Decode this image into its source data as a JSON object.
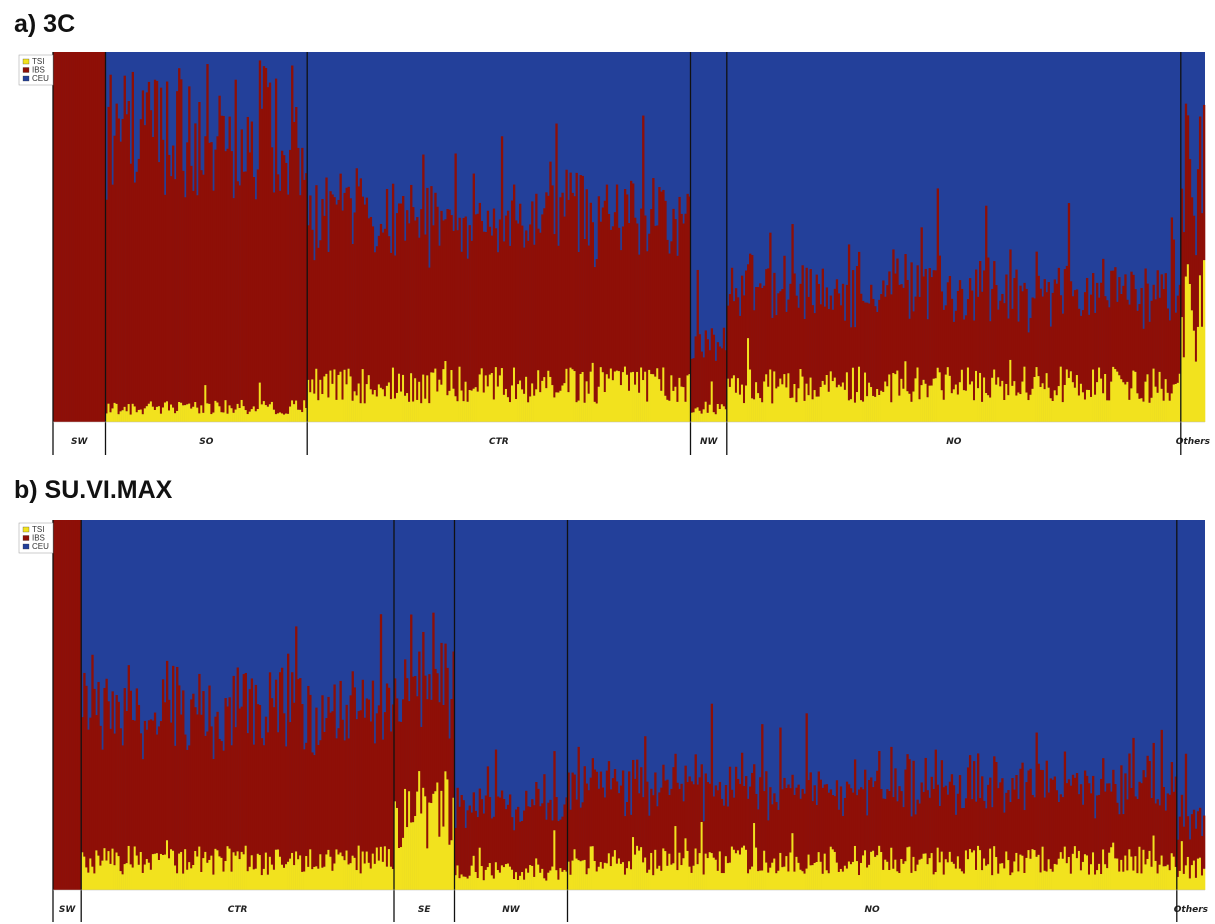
{
  "colors": {
    "tsi": "#f2e21e",
    "ibs": "#8e0f07",
    "ceu": "#23409a",
    "divider": "#111111"
  },
  "chart_data": [
    {
      "type": "bar",
      "subtype": "stacked-admixture",
      "title": "a) 3C",
      "legend": [
        "TSI",
        "IBS",
        "CEU"
      ],
      "ylim": [
        0,
        1
      ],
      "regions": [
        {
          "name": "SW",
          "count": 26,
          "tsi": 0.0,
          "ibs": 1.0,
          "ibs_var": 0.0
        },
        {
          "name": "SO",
          "count": 100,
          "tsi": 0.04,
          "ibs": 0.74,
          "ibs_var": 0.18
        },
        {
          "name": "CTR",
          "count": 190,
          "tsi": 0.1,
          "ibs": 0.45,
          "ibs_var": 0.09
        },
        {
          "name": "NW",
          "count": 18,
          "tsi": 0.04,
          "ibs": 0.18,
          "ibs_var": 0.04
        },
        {
          "name": "NO",
          "count": 225,
          "tsi": 0.1,
          "ibs": 0.25,
          "ibs_var": 0.07
        },
        {
          "name": "Others",
          "count": 12,
          "tsi": 0.3,
          "ibs": 0.4,
          "ibs_var": 0.12
        }
      ]
    },
    {
      "type": "bar",
      "subtype": "stacked-admixture",
      "title": "b) SU.VI.MAX",
      "legend": [
        "TSI",
        "IBS",
        "CEU"
      ],
      "ylim": [
        0,
        1
      ],
      "regions": [
        {
          "name": "SW",
          "count": 14,
          "tsi": 0.0,
          "ibs": 1.0,
          "ibs_var": 0.0
        },
        {
          "name": "CTR",
          "count": 155,
          "tsi": 0.08,
          "ibs": 0.4,
          "ibs_var": 0.1
        },
        {
          "name": "SE",
          "count": 30,
          "tsi": 0.22,
          "ibs": 0.32,
          "ibs_var": 0.1
        },
        {
          "name": "NW",
          "count": 56,
          "tsi": 0.05,
          "ibs": 0.17,
          "ibs_var": 0.05
        },
        {
          "name": "NO",
          "count": 302,
          "tsi": 0.08,
          "ibs": 0.2,
          "ibs_var": 0.06
        },
        {
          "name": "Others",
          "count": 14,
          "tsi": 0.06,
          "ibs": 0.12,
          "ibs_var": 0.04
        }
      ]
    }
  ]
}
